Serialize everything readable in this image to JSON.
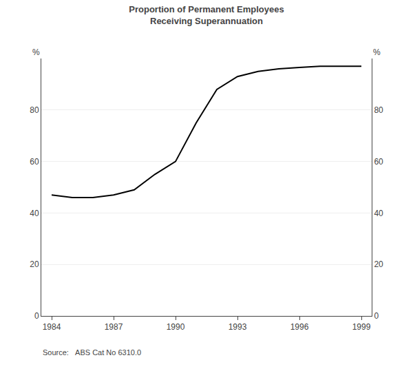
{
  "chart_data": {
    "type": "line",
    "title": "Proportion of Permanent Employees\nReceiving Superannuation",
    "x": [
      1984,
      1985,
      1986,
      1987,
      1988,
      1989,
      1990,
      1991,
      1992,
      1993,
      1994,
      1995,
      1996,
      1997,
      1998,
      1999
    ],
    "values": [
      47,
      46,
      46,
      47,
      49,
      55,
      60,
      75,
      88,
      93,
      95,
      96,
      96.5,
      97,
      97,
      97
    ],
    "color": "#000000",
    "xlim": [
      1983.5,
      1999.5
    ],
    "xticks": [
      1984,
      1987,
      1990,
      1993,
      1996,
      1999
    ],
    "ylim": [
      0,
      100
    ],
    "yticks": [
      0,
      20,
      40,
      60,
      80
    ],
    "y2lim": [
      0,
      100
    ],
    "y2ticks": [
      0,
      20,
      40,
      60,
      80
    ],
    "ylabel": "%",
    "y2label": "%",
    "annotations": [
      "Source:   ABS Cat No 6310.0"
    ],
    "grid": true
  }
}
